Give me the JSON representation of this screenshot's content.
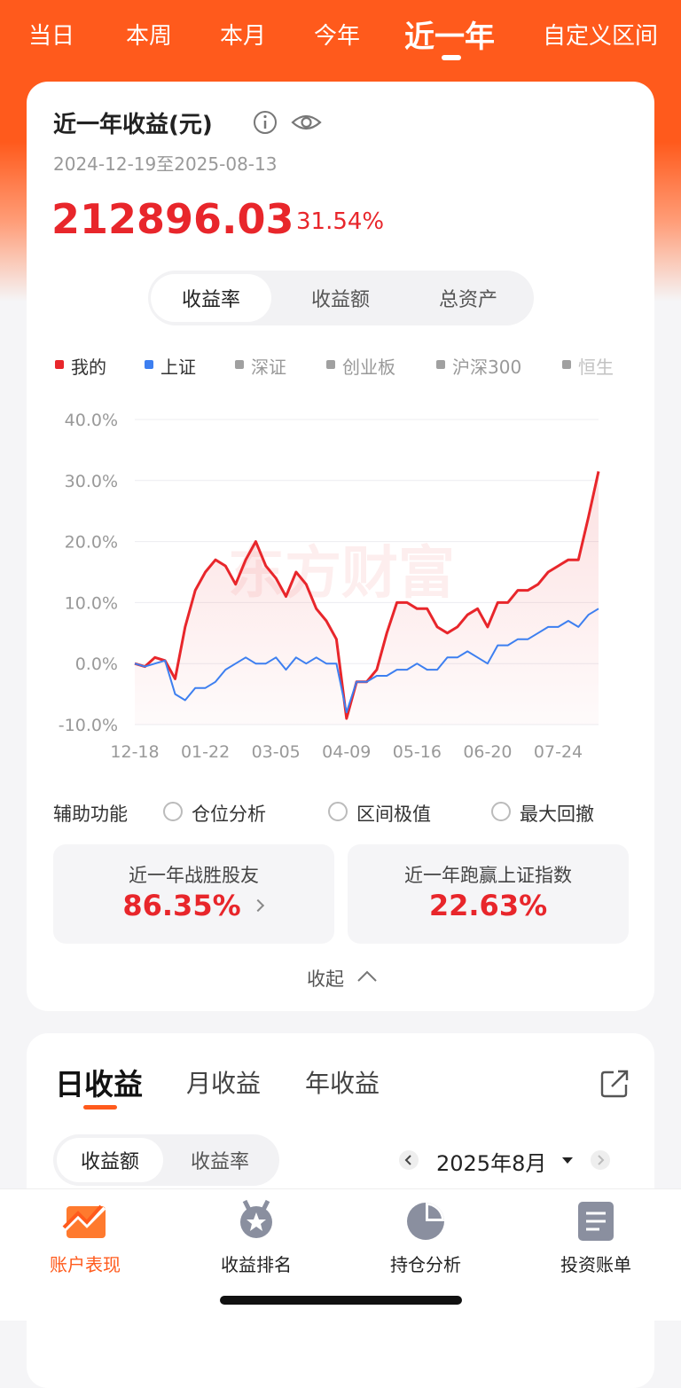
{
  "tabs": {
    "items": [
      "当日",
      "本周",
      "本月",
      "今年",
      "近一年",
      "自定义区间"
    ],
    "active": 4
  },
  "summary": {
    "title": "近一年收益(元)",
    "date_range": "2024-12-19至2025-08-13",
    "amount": "212896.03",
    "rate": "31.54%"
  },
  "segment": {
    "items": [
      "收益率",
      "收益额",
      "总资产"
    ],
    "active": 0
  },
  "chart_data": {
    "type": "line",
    "watermark": "东方财富",
    "categories": [
      "12-18",
      null,
      null,
      null,
      null,
      null,
      null,
      "01-22",
      null,
      null,
      null,
      null,
      null,
      null,
      "03-05",
      null,
      null,
      null,
      null,
      null,
      null,
      "04-09",
      null,
      null,
      null,
      null,
      null,
      null,
      "05-16",
      null,
      null,
      null,
      null,
      null,
      null,
      "06-20",
      null,
      null,
      null,
      null,
      null,
      null,
      "07-24",
      null,
      null,
      null,
      null
    ],
    "series": [
      {
        "name": "我的",
        "color": "#e8262b",
        "values": [
          0,
          -0.5,
          1,
          0.5,
          -2.5,
          6,
          12,
          15,
          17,
          16,
          13,
          17,
          20,
          16,
          14,
          11,
          15,
          13,
          9,
          7,
          4,
          -9,
          -3,
          -3,
          -1,
          5,
          10,
          10,
          9,
          9,
          6,
          5,
          6,
          8,
          9,
          6,
          10,
          10,
          12,
          12,
          13,
          15,
          16,
          17,
          17,
          24,
          31.5
        ]
      },
      {
        "name": "上证",
        "color": "#3d7ff0",
        "values": [
          0,
          -0.5,
          0,
          0.5,
          -5,
          -6,
          -4,
          -4,
          -3,
          -1,
          0,
          1,
          0,
          0,
          1,
          -1,
          1,
          0,
          1,
          0,
          0,
          -8,
          -3,
          -3,
          -2,
          -2,
          -1,
          -1,
          0,
          -1,
          -1,
          1,
          1,
          2,
          1,
          0,
          3,
          3,
          4,
          4,
          5,
          6,
          6,
          7,
          6,
          8,
          9
        ]
      }
    ],
    "other_indices": [
      "深证",
      "创业板",
      "沪深300",
      "恒生"
    ],
    "other_color": "#a0a0a0",
    "ylim": [
      -10,
      40
    ],
    "yticks": [
      {
        "value": -10,
        "label": "-10.0%"
      },
      {
        "value": 0,
        "label": "0.0%"
      },
      {
        "value": 10,
        "label": "10.0%"
      },
      {
        "value": 20,
        "label": "20.0%"
      },
      {
        "value": 30,
        "label": "30.0%"
      },
      {
        "value": 40,
        "label": "40.0%"
      }
    ],
    "grid": true
  },
  "aux": {
    "label": "辅助功能",
    "options": [
      "仓位分析",
      "区间极值",
      "最大回撤"
    ]
  },
  "stats": [
    {
      "label": "近一年战胜股友",
      "value": "86.35%"
    },
    {
      "label": "近一年跑赢上证指数",
      "value": "22.63%"
    }
  ],
  "collapse": "收起",
  "daily": {
    "tabs": [
      "日收益",
      "月收益",
      "年收益"
    ],
    "segment": [
      "收益额",
      "收益率"
    ],
    "month": "2025年8月"
  },
  "nav": [
    "账户表现",
    "收益排名",
    "持仓分析",
    "投资账单"
  ]
}
